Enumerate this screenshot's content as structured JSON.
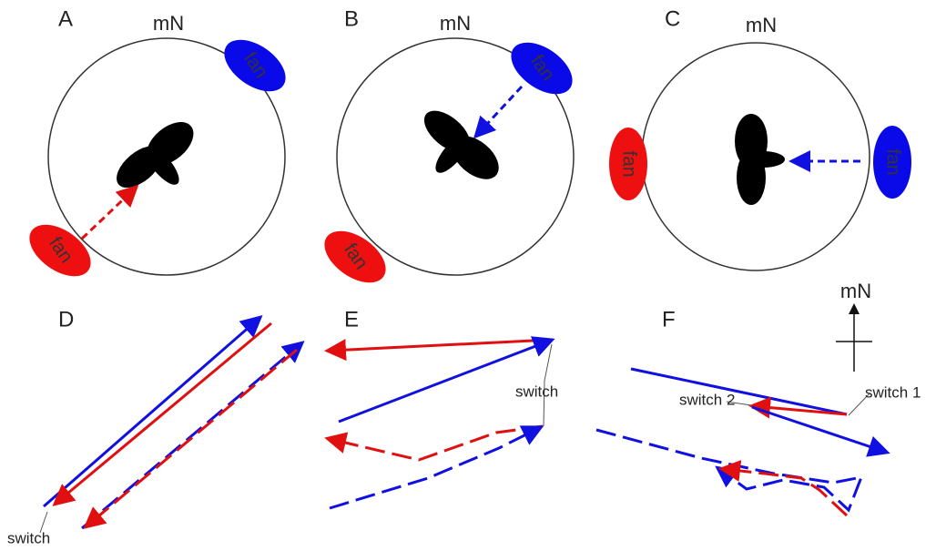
{
  "panels": [
    {
      "label": "A",
      "north": "mN",
      "fans": [
        "fan",
        "fan"
      ]
    },
    {
      "label": "B",
      "north": "mN",
      "fans": [
        "fan",
        "fan"
      ]
    },
    {
      "label": "C",
      "north": "mN",
      "fans": [
        "fan",
        "fan"
      ]
    },
    {
      "label": "D",
      "annotations": [
        "switch"
      ]
    },
    {
      "label": "E",
      "annotations": [
        "switch"
      ]
    },
    {
      "label": "F",
      "north": "mN",
      "annotations": [
        "switch 2",
        "switch 1"
      ]
    }
  ]
}
